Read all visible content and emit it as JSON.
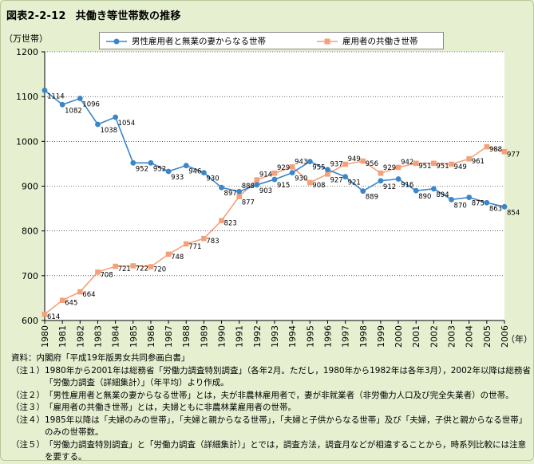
{
  "title_fig": "図表2-2-12",
  "title_text": "共働き等世帯数の推移",
  "unit_label": "（万世帯）",
  "colors": {
    "series1": "#3a86c8",
    "series2": "#f4a17a",
    "axis": "#000",
    "grid": "#000"
  },
  "chart_data": {
    "type": "line",
    "x": [
      "1980",
      "1981",
      "1982",
      "1983",
      "1984",
      "1985",
      "1986",
      "1987",
      "1988",
      "1989",
      "1990",
      "1991",
      "1992",
      "1993",
      "1994",
      "1995",
      "1996",
      "1997",
      "1998",
      "1999",
      "2000",
      "2001",
      "2002",
      "2003",
      "2004",
      "2005",
      "2006"
    ],
    "xlabel": "（年）",
    "ylabel": "（万世帯）",
    "ylim": [
      600,
      1200
    ],
    "yticks": [
      600,
      700,
      800,
      900,
      1000,
      1100,
      1200
    ],
    "grid": "horizontal, dotted",
    "legend": "top",
    "series": [
      {
        "name": "男性雇用者と無業の妻からなる世帯",
        "marker": "circle",
        "values": [
          1114,
          1082,
          1096,
          1038,
          1054,
          952,
          952,
          933,
          946,
          930,
          897,
          888,
          903,
          915,
          930,
          955,
          937,
          921,
          889,
          912,
          916,
          890,
          894,
          870,
          875,
          863,
          854
        ]
      },
      {
        "name": "雇用者の共働き世帯",
        "marker": "square",
        "values": [
          614,
          645,
          664,
          708,
          721,
          722,
          720,
          748,
          771,
          783,
          823,
          877,
          914,
          929,
          943,
          908,
          927,
          949,
          956,
          929,
          942,
          951,
          951,
          949,
          961,
          988,
          977
        ]
      }
    ]
  },
  "notes": [
    {
      "label": "資料：",
      "text": "内閣府「平成19年版男女共同参画白書」"
    },
    {
      "label": "（注１）",
      "text": "1980年から2001年は総務省「労働力調査特別調査」（各年2月。ただし，1980年から1982年は各年3月），2002年以降は総務省「労働力調査（詳細集計）」（年平均）より作成。"
    },
    {
      "label": "（注２）",
      "text": "「男性雇用者と無業の妻からなる世帯」とは，夫が非農林雇用者で，妻が非就業者（非労働力人口及び完全失業者）の世帯。"
    },
    {
      "label": "（注３）",
      "text": "「雇用者の共働き世帯」とは，夫婦ともに非農林業雇用者の世帯。"
    },
    {
      "label": "（注４）",
      "text": "1985年以降は「夫婦のみの世帯」，「夫婦と親からなる世帯」，「夫婦と子供からなる世帯」及び「夫婦，子供と親からなる世帯」のみの世帯数。"
    },
    {
      "label": "（注５）",
      "text": "「労働力調査特別調査」と「労働力調査（詳細集計）」とでは，調査方法，調査月などが相違することから，時系列比較には注意を要する。"
    }
  ]
}
